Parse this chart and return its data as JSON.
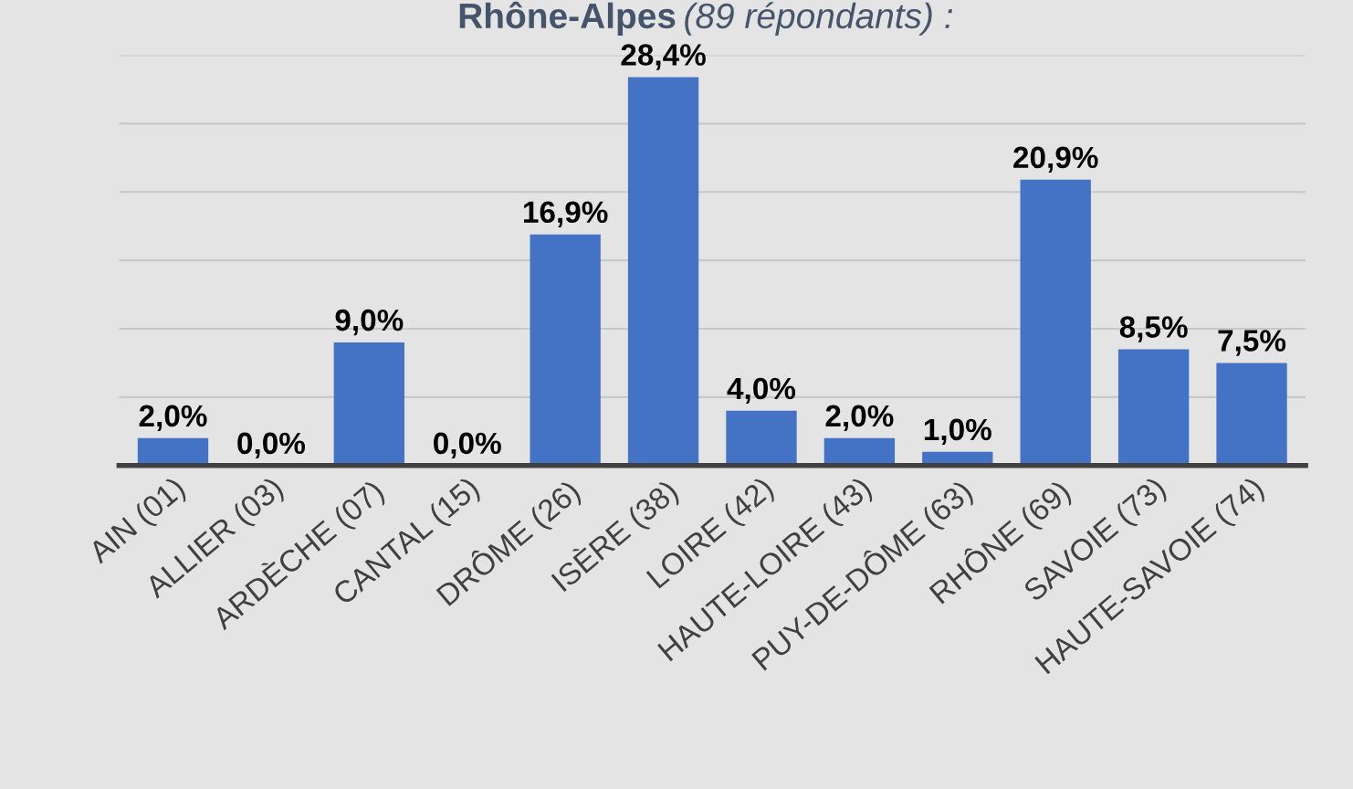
{
  "chart_data": {
    "type": "bar",
    "title": "Rhône-Alpes",
    "subtitle": "(89 répondants) :",
    "categories": [
      "AIN (01)",
      "ALLIER (03)",
      "ARDÈCHE (07)",
      "CANTAL (15)",
      "DRÔME (26)",
      "ISÈRE (38)",
      "LOIRE (42)",
      "HAUTE-LOIRE (43)",
      "PUY-DE-DÔME (63)",
      "RHÔNE (69)",
      "SAVOIE (73)",
      "HAUTE-SAVOIE (74)"
    ],
    "values": [
      2.0,
      0.0,
      9.0,
      0.0,
      16.9,
      28.4,
      4.0,
      2.0,
      1.0,
      20.9,
      8.5,
      7.5
    ],
    "value_labels": [
      "2,0%",
      "0,0%",
      "9,0%",
      "0,0%",
      "16,9%",
      "28,4%",
      "4,0%",
      "2,0%",
      "1,0%",
      "20,9%",
      "8,5%",
      "7,5%"
    ],
    "color": "#4472c4",
    "ylim": [
      0,
      30
    ],
    "yticks": [
      {
        "value": 0,
        "label": null
      },
      {
        "value": 5,
        "label": null
      },
      {
        "value": 10,
        "label": null
      },
      {
        "value": 15,
        "label": null
      },
      {
        "value": 20,
        "label": null
      },
      {
        "value": 25,
        "label": null
      },
      {
        "value": 30,
        "label": null
      }
    ],
    "grid": "y",
    "tick_labels": "x",
    "legend": false
  }
}
